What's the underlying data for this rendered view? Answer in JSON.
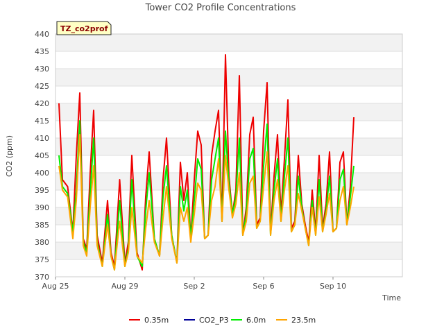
{
  "chart_data": {
    "type": "line",
    "title": "Tower CO2 Profile Concentrations",
    "xlabel": "Time",
    "ylabel": "CO2 (ppm)",
    "tag": "TZ_co2prof",
    "ylim": [
      370,
      440
    ],
    "yticks": [
      370,
      375,
      380,
      385,
      390,
      395,
      400,
      405,
      410,
      415,
      420,
      425,
      430,
      435,
      440
    ],
    "xlim": [
      0,
      20
    ],
    "xticks": [
      {
        "label": "Aug 25",
        "value": 0
      },
      {
        "label": "Aug 29",
        "value": 4
      },
      {
        "label": "Sep 2",
        "value": 8
      },
      {
        "label": "Sep 6",
        "value": 12
      },
      {
        "label": "Sep 10",
        "value": 16
      }
    ],
    "series": [
      {
        "name": "0.35m",
        "color": "#ee0000",
        "x": [
          0.2,
          0.4,
          0.7,
          1.0,
          1.2,
          1.4,
          1.6,
          1.8,
          2.0,
          2.2,
          2.4,
          2.7,
          3.0,
          3.2,
          3.4,
          3.7,
          4.0,
          4.2,
          4.4,
          4.7,
          5.0,
          5.2,
          5.4,
          5.7,
          6.0,
          6.2,
          6.4,
          6.7,
          7.0,
          7.2,
          7.4,
          7.6,
          7.8,
          8.0,
          8.2,
          8.4,
          8.6,
          8.8,
          9.0,
          9.2,
          9.4,
          9.6,
          9.8,
          10.0,
          10.2,
          10.4,
          10.6,
          10.8,
          11.0,
          11.2,
          11.4,
          11.6,
          11.8,
          12.0,
          12.2,
          12.4,
          12.6,
          12.8,
          13.0,
          13.2,
          13.4,
          13.6,
          13.8,
          14.0,
          14.2,
          14.4,
          14.6,
          14.8,
          15.0,
          15.2,
          15.4,
          15.6,
          15.8,
          16.0,
          16.2,
          16.4,
          16.6,
          16.8,
          17.0,
          17.2
        ],
        "values": [
          420,
          398,
          396,
          383,
          405,
          423,
          381,
          378,
          400,
          418,
          382,
          374,
          392,
          377,
          373,
          398,
          374,
          380,
          405,
          377,
          372,
          393,
          406,
          381,
          376,
          398,
          410,
          382,
          374,
          403,
          392,
          400,
          381,
          398,
          412,
          408,
          381,
          382,
          405,
          412,
          418,
          386,
          434,
          399,
          388,
          395,
          428,
          382,
          390,
          411,
          416,
          385,
          387,
          412,
          426,
          383,
          399,
          411,
          388,
          404,
          421,
          384,
          386,
          405,
          391,
          385,
          380,
          395,
          383,
          405,
          384,
          391,
          406,
          383,
          384,
          403,
          406,
          385,
          396,
          416
        ]
      },
      {
        "name": "CO2_P3",
        "color": "#000099",
        "x": [],
        "values": []
      },
      {
        "name": "6.0m",
        "color": "#00ee00",
        "x": [
          0.2,
          0.4,
          0.7,
          1.0,
          1.2,
          1.4,
          1.6,
          1.8,
          2.0,
          2.2,
          2.4,
          2.7,
          3.0,
          3.2,
          3.4,
          3.7,
          4.0,
          4.2,
          4.4,
          4.7,
          5.0,
          5.2,
          5.4,
          5.7,
          6.0,
          6.2,
          6.4,
          6.7,
          7.0,
          7.2,
          7.4,
          7.6,
          7.8,
          8.0,
          8.2,
          8.4,
          8.6,
          8.8,
          9.0,
          9.2,
          9.4,
          9.6,
          9.8,
          10.0,
          10.2,
          10.4,
          10.6,
          10.8,
          11.0,
          11.2,
          11.4,
          11.6,
          11.8,
          12.0,
          12.2,
          12.4,
          12.6,
          12.8,
          13.0,
          13.2,
          13.4,
          13.6,
          13.8,
          14.0,
          14.2,
          14.4,
          14.6,
          14.8,
          15.0,
          15.2,
          15.4,
          15.6,
          15.8,
          16.0,
          16.2,
          16.4,
          16.6,
          16.8,
          17.0,
          17.2
        ],
        "values": [
          405,
          396,
          394,
          383,
          395,
          415,
          380,
          377,
          394,
          410,
          380,
          373,
          388,
          376,
          372,
          392,
          373,
          378,
          398,
          376,
          373,
          389,
          400,
          381,
          376,
          393,
          402,
          382,
          374,
          396,
          389,
          395,
          381,
          392,
          404,
          401,
          381,
          382,
          398,
          404,
          410,
          386,
          412,
          397,
          388,
          393,
          410,
          382,
          388,
          404,
          407,
          384,
          386,
          402,
          414,
          382,
          395,
          404,
          386,
          399,
          410,
          383,
          385,
          399,
          390,
          384,
          379,
          392,
          382,
          398,
          383,
          389,
          399,
          383,
          384,
          398,
          401,
          385,
          393,
          402
        ]
      },
      {
        "name": "23.5m",
        "color": "#ffa500",
        "x": [
          0.2,
          0.4,
          0.7,
          1.0,
          1.2,
          1.4,
          1.6,
          1.8,
          2.0,
          2.2,
          2.4,
          2.7,
          3.0,
          3.2,
          3.4,
          3.7,
          4.0,
          4.2,
          4.4,
          4.7,
          5.0,
          5.2,
          5.4,
          5.7,
          6.0,
          6.2,
          6.4,
          6.7,
          7.0,
          7.2,
          7.4,
          7.6,
          7.8,
          8.0,
          8.2,
          8.4,
          8.6,
          8.8,
          9.0,
          9.2,
          9.4,
          9.6,
          9.8,
          10.0,
          10.2,
          10.4,
          10.6,
          10.8,
          11.0,
          11.2,
          11.4,
          11.6,
          11.8,
          12.0,
          12.2,
          12.4,
          12.6,
          12.8,
          13.0,
          13.2,
          13.4,
          13.6,
          13.8,
          14.0,
          14.2,
          14.4,
          14.6,
          14.8,
          15.0,
          15.2,
          15.4,
          15.6,
          15.8,
          16.0,
          16.2,
          16.4,
          16.6,
          16.8,
          17.0,
          17.2
        ],
        "values": [
          402,
          395,
          393,
          381,
          392,
          411,
          379,
          376,
          390,
          402,
          379,
          373,
          385,
          376,
          372,
          386,
          373,
          377,
          390,
          376,
          374,
          384,
          392,
          380,
          376,
          387,
          396,
          381,
          374,
          390,
          386,
          390,
          380,
          388,
          397,
          395,
          381,
          382,
          392,
          396,
          404,
          386,
          405,
          395,
          387,
          391,
          400,
          382,
          386,
          397,
          399,
          384,
          386,
          396,
          406,
          382,
          392,
          398,
          386,
          395,
          402,
          383,
          385,
          394,
          389,
          384,
          379,
          390,
          382,
          393,
          383,
          388,
          394,
          383,
          384,
          392,
          396,
          385,
          390,
          396
        ]
      }
    ]
  }
}
